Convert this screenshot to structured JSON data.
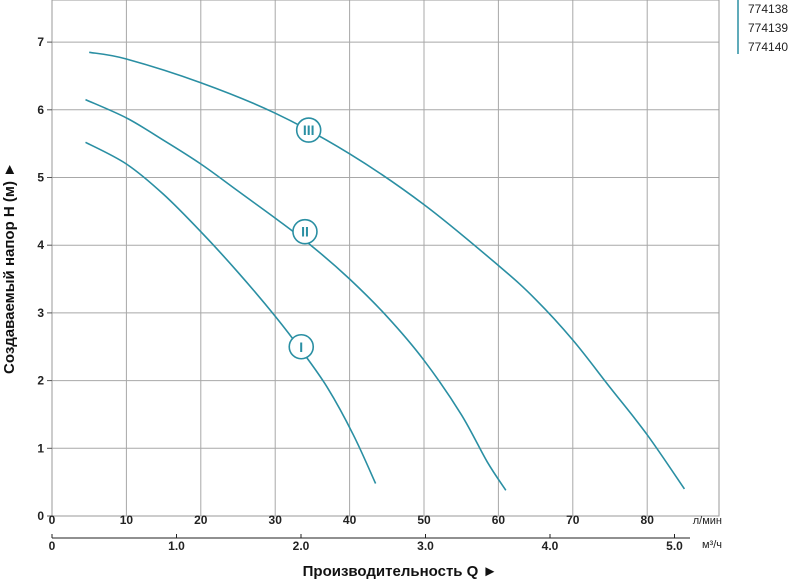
{
  "chart_data": {
    "type": "line",
    "xlabel": "Производительность Q ►",
    "ylabel": "Создаваемый напор H (м) ►",
    "x_unit_lpm": "л/мин",
    "x_unit_m3h": "м³/ч",
    "xlim_lpm": [
      0,
      88
    ],
    "ylim": [
      0,
      7.6
    ],
    "x_ticks_lpm": [
      "0",
      "10",
      "20",
      "30",
      "40",
      "50",
      "60",
      "70",
      "80"
    ],
    "x_ticks_m3h": [
      "0",
      "1.0",
      "2.0",
      "3.0",
      "4.0",
      "5.0"
    ],
    "y_ticks": [
      "0",
      "1",
      "2",
      "3",
      "4",
      "5",
      "6",
      "7"
    ],
    "grid": true,
    "legend_items": [
      "774138",
      "774139",
      "774140"
    ],
    "curve_color": "#2a8fa3",
    "series": [
      {
        "label": "I",
        "label_at": [
          33.5,
          2.5
        ],
        "points": [
          [
            4.5,
            5.52
          ],
          [
            10,
            5.2
          ],
          [
            15,
            4.75
          ],
          [
            20,
            4.2
          ],
          [
            25,
            3.6
          ],
          [
            30,
            2.95
          ],
          [
            33.5,
            2.45
          ],
          [
            37,
            1.9
          ],
          [
            40.5,
            1.2
          ],
          [
            43.5,
            0.48
          ]
        ]
      },
      {
        "label": "II",
        "label_at": [
          34,
          4.2
        ],
        "points": [
          [
            4.5,
            6.15
          ],
          [
            10,
            5.88
          ],
          [
            15,
            5.55
          ],
          [
            20,
            5.2
          ],
          [
            25,
            4.8
          ],
          [
            30,
            4.4
          ],
          [
            35,
            3.98
          ],
          [
            40,
            3.5
          ],
          [
            45,
            2.95
          ],
          [
            50,
            2.3
          ],
          [
            55,
            1.5
          ],
          [
            58.5,
            0.8
          ],
          [
            61,
            0.38
          ]
        ]
      },
      {
        "label": "III",
        "label_at": [
          34.5,
          5.7
        ],
        "points": [
          [
            5,
            6.85
          ],
          [
            10,
            6.75
          ],
          [
            20,
            6.4
          ],
          [
            30,
            5.95
          ],
          [
            40,
            5.35
          ],
          [
            50,
            4.6
          ],
          [
            60,
            3.7
          ],
          [
            65,
            3.2
          ],
          [
            70,
            2.6
          ],
          [
            75,
            1.9
          ],
          [
            80,
            1.2
          ],
          [
            85,
            0.4
          ]
        ]
      }
    ]
  }
}
